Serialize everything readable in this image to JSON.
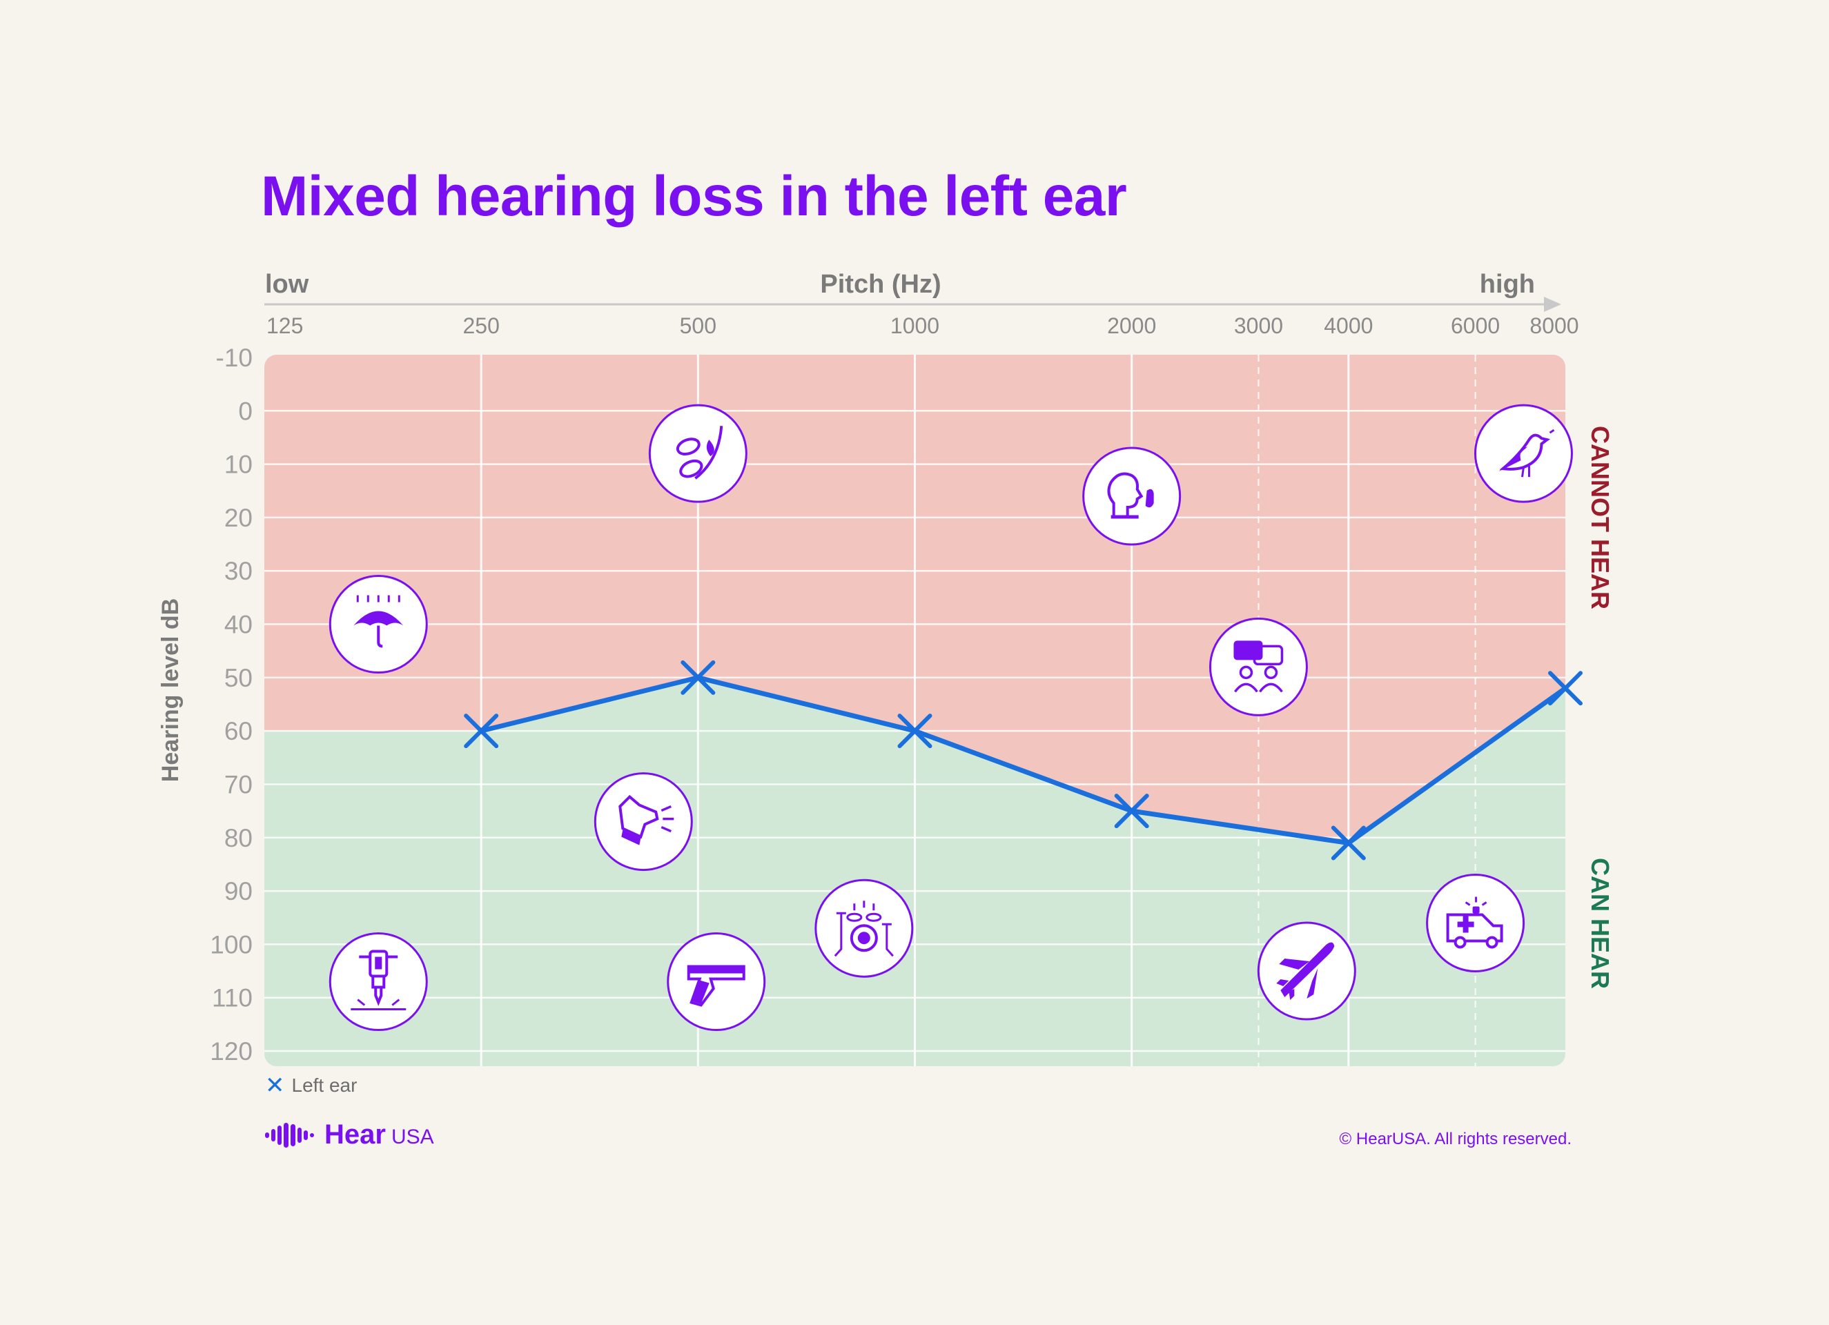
{
  "chart_data": {
    "type": "line",
    "title": "Mixed hearing loss in the left ear",
    "xlabel": "Pitch (Hz)",
    "xlabel_low": "low",
    "xlabel_high": "high",
    "ylabel": "Hearing level dB",
    "x_ticks": [
      "125",
      "250",
      "500",
      "1000",
      "2000",
      "3000",
      "4000",
      "6000",
      "8000"
    ],
    "y_ticks": [
      -10,
      0,
      10,
      20,
      30,
      40,
      50,
      60,
      70,
      80,
      90,
      100,
      110,
      120
    ],
    "ylim": [
      -10,
      120
    ],
    "y_inverted": true,
    "x_scale": "log",
    "zones": [
      {
        "label": "CANNOT HEAR",
        "color": "#f3c5bf"
      },
      {
        "label": "CAN HEAR",
        "color": "#d1e8d7"
      }
    ],
    "series": [
      {
        "name": "Left ear",
        "marker": "x",
        "color": "#1a6fdc",
        "x": [
          250,
          500,
          1000,
          2000,
          4000,
          8000
        ],
        "y": [
          60,
          50,
          60,
          75,
          81,
          52
        ]
      }
    ],
    "icons": [
      {
        "name": "rain-umbrella-icon",
        "x": 180,
        "y": 40
      },
      {
        "name": "leaves-rustling-icon",
        "x": 500,
        "y": 8
      },
      {
        "name": "whisper-icon",
        "x": 2000,
        "y": 16
      },
      {
        "name": "bird-chirping-icon",
        "x": 7000,
        "y": 8
      },
      {
        "name": "conversation-icon",
        "x": 3000,
        "y": 48
      },
      {
        "name": "dog-barking-icon",
        "x": 420,
        "y": 77
      },
      {
        "name": "drum-kit-icon",
        "x": 850,
        "y": 97
      },
      {
        "name": "jackhammer-icon",
        "x": 180,
        "y": 107
      },
      {
        "name": "gunshot-icon",
        "x": 530,
        "y": 107
      },
      {
        "name": "airplane-icon",
        "x": 3500,
        "y": 105
      },
      {
        "name": "ambulance-siren-icon",
        "x": 6000,
        "y": 96
      }
    ]
  },
  "legend": {
    "label": "Left ear",
    "marker": "✕"
  },
  "branding": {
    "logo_hear": "Hear",
    "logo_usa": "USA",
    "copyright": "© HearUSA. All rights reserved."
  }
}
